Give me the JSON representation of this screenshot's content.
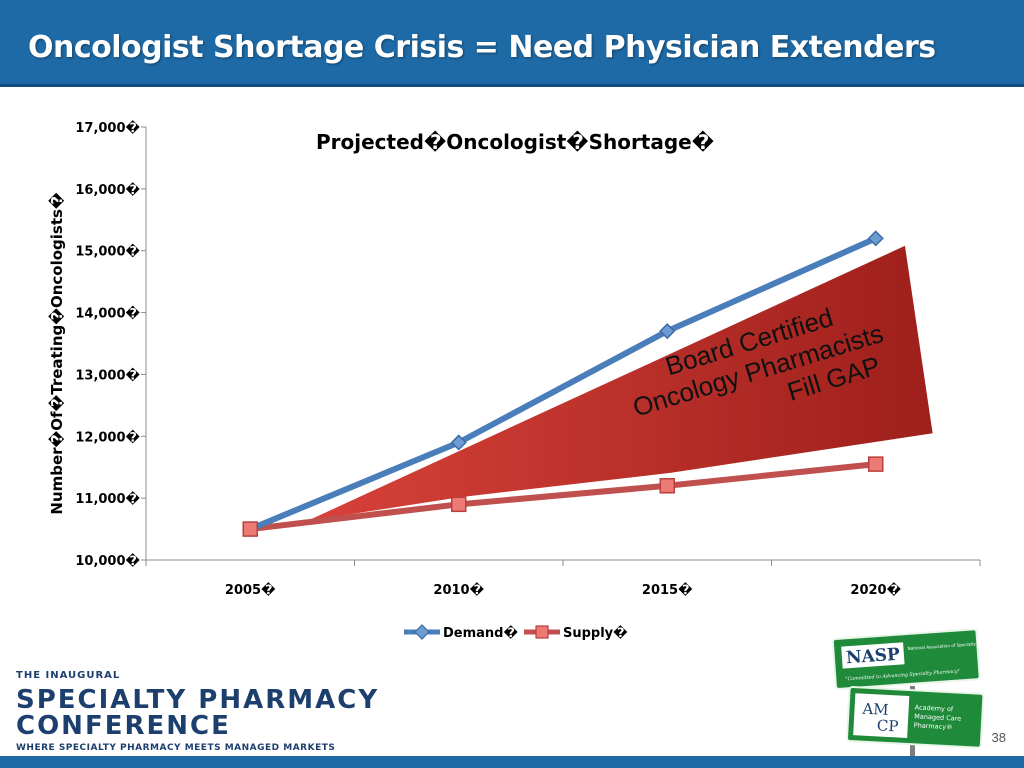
{
  "slide": {
    "title": "Oncologist Shortage Crisis = Need Physician Extenders",
    "page_number": "38"
  },
  "colors": {
    "header_blue": "#1e6aa6",
    "demand_blue": "#4a7ebb",
    "supply_red": "#c0504d",
    "wedge_red": "#c0312b",
    "sign_green": "#1f8a3a"
  },
  "chart_data": {
    "type": "line",
    "title": "Projected�Oncologist�Shortage�",
    "xlabel": "",
    "ylabel": "Number�Of�Treating�Oncologists�",
    "categories": [
      "2005�",
      "2010�",
      "2015�",
      "2020�"
    ],
    "ylim": [
      10000,
      17000
    ],
    "yticks": [
      "10,000�",
      "11,000�",
      "12,000�",
      "13,000�",
      "14,000�",
      "15,000�",
      "16,000�",
      "17,000�"
    ],
    "ytick_values": [
      10000,
      11000,
      12000,
      13000,
      14000,
      15000,
      16000,
      17000
    ],
    "series": [
      {
        "name": "Demand�",
        "values": [
          10500,
          11900,
          13700,
          15200
        ]
      },
      {
        "name": "Supply�",
        "values": [
          10500,
          10900,
          11200,
          11550
        ]
      }
    ],
    "annotation": [
      "Board Certified",
      "Oncology Pharmacists",
      "Fill GAP"
    ],
    "legend_position": "bottom"
  },
  "footer": {
    "line1": "THE INAUGURAL",
    "line2": "SPECIALTY PHARMACY",
    "line3": "CONFERENCE",
    "tagline": "WHERE SPECIALTY PHARMACY MEETS MANAGED MARKETS"
  },
  "signs": {
    "nasp": {
      "abbr": "NASP",
      "name": "National Association of Specialty Pharmacy",
      "motto": "\"Committed to Advancing Specialty Pharmacy\""
    },
    "amcp": {
      "abbr_top": "AM",
      "abbr_bottom": "CP",
      "name": "Academy of Managed Care Pharmacy®"
    }
  }
}
